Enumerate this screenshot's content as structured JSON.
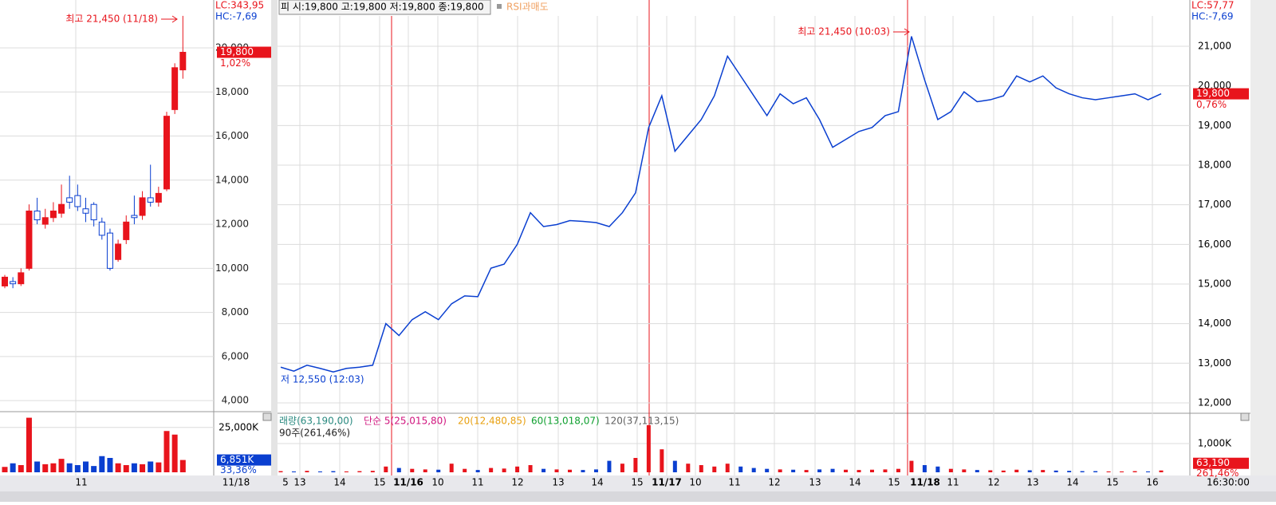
{
  "chart_data": [
    {
      "type": "candlestick",
      "ylim": [
        3500,
        22170
      ],
      "yticks": [
        {
          "value": 4000,
          "label": "4,000"
        },
        {
          "value": 6000,
          "label": "6,000"
        },
        {
          "value": 8000,
          "label": "8,000"
        },
        {
          "value": 10000,
          "label": "10,000"
        },
        {
          "value": 12000,
          "label": "12,000"
        },
        {
          "value": 14000,
          "label": "14,000"
        },
        {
          "value": 16000,
          "label": "16,000"
        },
        {
          "value": 18000,
          "label": "18,000"
        },
        {
          "value": 20000,
          "label": "20,000"
        }
      ],
      "open": [
        9200,
        9400,
        9300,
        10000,
        12600,
        12000,
        12300,
        12500,
        13200,
        13300,
        12700,
        12900,
        12100,
        11600,
        10400,
        11300,
        12400,
        12400,
        13200,
        13000,
        13600,
        17200,
        19000
      ],
      "high": [
        9700,
        9600,
        10000,
        12900,
        13200,
        12700,
        13000,
        13800,
        14200,
        13800,
        13200,
        13000,
        12300,
        11800,
        11300,
        12400,
        13300,
        13500,
        14700,
        13700,
        17100,
        19300,
        21450
      ],
      "low": [
        9100,
        9100,
        9200,
        9900,
        12000,
        11800,
        12100,
        12300,
        12700,
        12600,
        12100,
        11900,
        11300,
        9900,
        10300,
        11100,
        12000,
        12200,
        12800,
        12800,
        13500,
        17000,
        18600
      ],
      "close": [
        9600,
        9300,
        9800,
        12600,
        12200,
        12300,
        12600,
        12900,
        13000,
        12800,
        12500,
        12200,
        11500,
        10000,
        11100,
        12100,
        12300,
        13200,
        13000,
        13400,
        16900,
        19100,
        19800
      ],
      "up_color": "#e8141c",
      "down_color": "#0a3fd0",
      "high_label": "최고 21,450 (11/18)",
      "lc": "LC:343,95",
      "hc": "HC:-7,69",
      "last": {
        "value": 19800,
        "label": "19,800"
      },
      "change": "1,02%",
      "x_labels": [
        "11",
        "11/18"
      ]
    },
    {
      "type": "bar",
      "ylim": [
        0,
        32000000
      ],
      "yticks": [
        {
          "value": 25000000,
          "label": "25,000K"
        }
      ],
      "values": [
        3000000,
        5000000,
        4000000,
        30400000,
        6000000,
        4500000,
        5000000,
        7500000,
        5000000,
        4000000,
        6000000,
        3500000,
        9000000,
        8000000,
        5000000,
        4000000,
        5000000,
        4500000,
        6000000,
        5500000,
        23000000,
        21000000,
        6851000
      ],
      "last": {
        "value": 6851000,
        "label": "6,851K"
      },
      "change": "33,36%"
    },
    {
      "type": "line",
      "header": "피 시:19,800 고:19,800 저:19,800 종:19,800",
      "indicator": "RSI과매도",
      "ylim": [
        11778,
        21765
      ],
      "yticks": [
        {
          "value": 12000,
          "label": "12,000"
        },
        {
          "value": 13000,
          "label": "13,000"
        },
        {
          "value": 14000,
          "label": "14,000"
        },
        {
          "value": 15000,
          "label": "15,000"
        },
        {
          "value": 16000,
          "label": "16,000"
        },
        {
          "value": 17000,
          "label": "17,000"
        },
        {
          "value": 18000,
          "label": "18,000"
        },
        {
          "value": 19000,
          "label": "19,000"
        },
        {
          "value": 20000,
          "label": "20,000"
        },
        {
          "value": 21000,
          "label": "21,000"
        }
      ],
      "color": "#0a3fd0",
      "values": [
        12900,
        12800,
        12950,
        12870,
        12780,
        12870,
        12900,
        12950,
        14000,
        13700,
        14100,
        14300,
        14100,
        14500,
        14700,
        14680,
        15400,
        15500,
        16000,
        16800,
        16450,
        16500,
        16600,
        16580,
        16550,
        16450,
        16800,
        17300,
        18950,
        19750,
        18350,
        18750,
        19150,
        19750,
        20750,
        20250,
        19750,
        19250,
        19800,
        19550,
        19700,
        19150,
        18450,
        18650,
        18850,
        18950,
        19250,
        19350,
        21250,
        20150,
        19150,
        19350,
        19850,
        19600,
        19650,
        19750,
        20250,
        20100,
        20250,
        19950,
        19800,
        19700,
        19650,
        19700,
        19750,
        19800,
        19650,
        19800
      ],
      "high_label": "최고 21,450 (10:03)",
      "low_label": "저 12,550 (12:03)",
      "lc": "LC:57,77",
      "hc": "HC:-7,69",
      "last": {
        "value": 19800,
        "label": "19,800"
      },
      "change": "0,76%",
      "x_labels": [
        "5",
        "13",
        "14",
        "15",
        "11/16",
        "10",
        "11",
        "12",
        "13",
        "14",
        "15",
        "11/17",
        "10",
        "11",
        "12",
        "13",
        "14",
        "15",
        "11/18",
        "11",
        "12",
        "13",
        "14",
        "15",
        "16",
        "16:30:00"
      ]
    },
    {
      "type": "bar",
      "ylim": [
        0,
        2000000
      ],
      "yticks": [
        {
          "value": 1000000,
          "label": "1,000K"
        }
      ],
      "values": [
        40000,
        30000,
        50000,
        30000,
        40000,
        30000,
        40000,
        50000,
        200000,
        150000,
        120000,
        100000,
        90000,
        300000,
        120000,
        80000,
        150000,
        130000,
        200000,
        250000,
        120000,
        100000,
        90000,
        80000,
        100000,
        400000,
        300000,
        500000,
        1640000,
        800000,
        400000,
        300000,
        250000,
        200000,
        300000,
        200000,
        150000,
        120000,
        100000,
        90000,
        80000,
        100000,
        120000,
        90000,
        80000,
        90000,
        100000,
        120000,
        400000,
        250000,
        200000,
        120000,
        100000,
        80000,
        70000,
        60000,
        90000,
        70000,
        80000,
        60000,
        50000,
        40000,
        40000,
        30000,
        30000,
        40000,
        30000,
        63190
      ],
      "legend": [
        "래량(63,190,00)",
        "단순 5(25,015,80)",
        "20(12,480,85)",
        "60(13,018,07)",
        "120(37,113,15)",
        "90주(261,46%)"
      ],
      "legend_colors": [
        "#2a8a80",
        "#d0147e",
        "#e8a010",
        "#10a030",
        "#606060",
        "#222222"
      ],
      "last": {
        "value": 63190,
        "label": "63,190"
      },
      "change": "261,46%"
    }
  ]
}
